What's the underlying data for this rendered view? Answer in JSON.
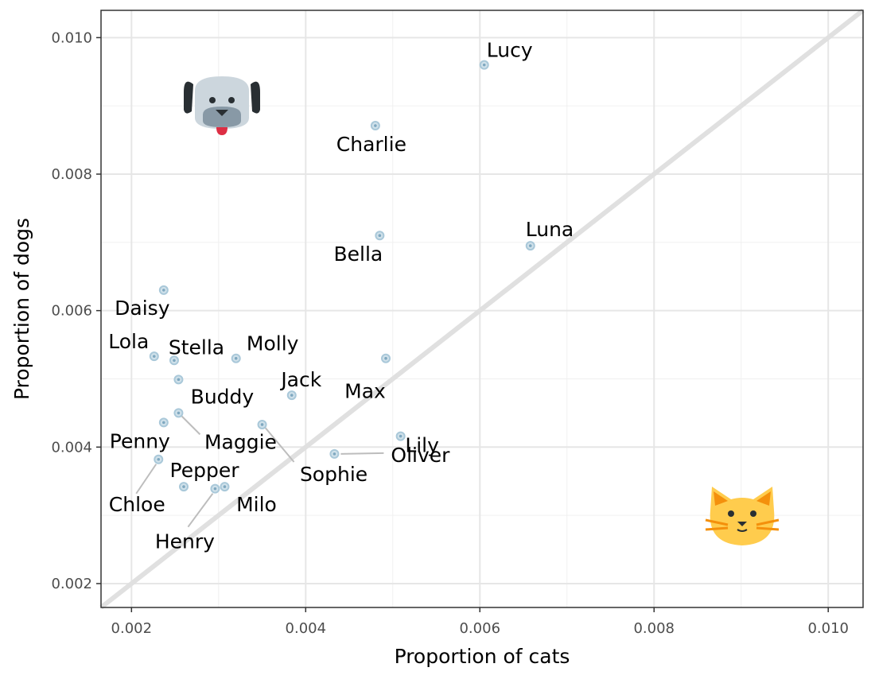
{
  "chart_data": {
    "type": "scatter",
    "xlabel": "Proportion of cats",
    "ylabel": "Proportion of dogs",
    "xlim": [
      0.00165,
      0.0104
    ],
    "ylim": [
      0.00165,
      0.0104
    ],
    "x_ticks": [
      {
        "value": 0.002,
        "label": "0.002"
      },
      {
        "value": 0.004,
        "label": "0.004"
      },
      {
        "value": 0.006,
        "label": "0.006"
      },
      {
        "value": 0.008,
        "label": "0.008"
      },
      {
        "value": 0.01,
        "label": "0.010"
      }
    ],
    "y_ticks": [
      {
        "value": 0.002,
        "label": "0.002"
      },
      {
        "value": 0.004,
        "label": "0.004"
      },
      {
        "value": 0.006,
        "label": "0.006"
      },
      {
        "value": 0.008,
        "label": "0.008"
      },
      {
        "value": 0.01,
        "label": "0.010"
      }
    ],
    "reference_line": "y = x",
    "grid": true,
    "point_color": "#a9c8d9",
    "line_color": "#e0e0e0",
    "icons": [
      "dog-icon",
      "cat-icon"
    ],
    "points": [
      {
        "name": "Lucy",
        "x": 0.00605,
        "y": 0.0096
      },
      {
        "name": "Charlie",
        "x": 0.0048,
        "y": 0.00871
      },
      {
        "name": "Luna",
        "x": 0.00658,
        "y": 0.00695
      },
      {
        "name": "Bella",
        "x": 0.00485,
        "y": 0.0071
      },
      {
        "name": "Daisy",
        "x": 0.00237,
        "y": 0.0063
      },
      {
        "name": "Lola",
        "x": 0.00226,
        "y": 0.00533
      },
      {
        "name": "Stella",
        "x": 0.00249,
        "y": 0.00527
      },
      {
        "name": "Molly",
        "x": 0.0032,
        "y": 0.0053
      },
      {
        "name": "Max",
        "x": 0.00492,
        "y": 0.0053
      },
      {
        "name": "Jack",
        "x": 0.00384,
        "y": 0.00476
      },
      {
        "name": "Buddy",
        "x": 0.00254,
        "y": 0.00499
      },
      {
        "name": "Maggie",
        "x": 0.00254,
        "y": 0.0045
      },
      {
        "name": "Lily",
        "x": 0.00509,
        "y": 0.00416
      },
      {
        "name": "Oliver",
        "x": 0.00433,
        "y": 0.0039
      },
      {
        "name": "Sophie",
        "x": 0.0035,
        "y": 0.00433
      },
      {
        "name": "Penny",
        "x": 0.00237,
        "y": 0.00436
      },
      {
        "name": "Pepper",
        "x": 0.0026,
        "y": 0.00342
      },
      {
        "name": "Chloe",
        "x": 0.00231,
        "y": 0.00382
      },
      {
        "name": "Milo",
        "x": 0.00307,
        "y": 0.00342
      },
      {
        "name": "Henry",
        "x": 0.00296,
        "y": 0.00339
      }
    ]
  }
}
